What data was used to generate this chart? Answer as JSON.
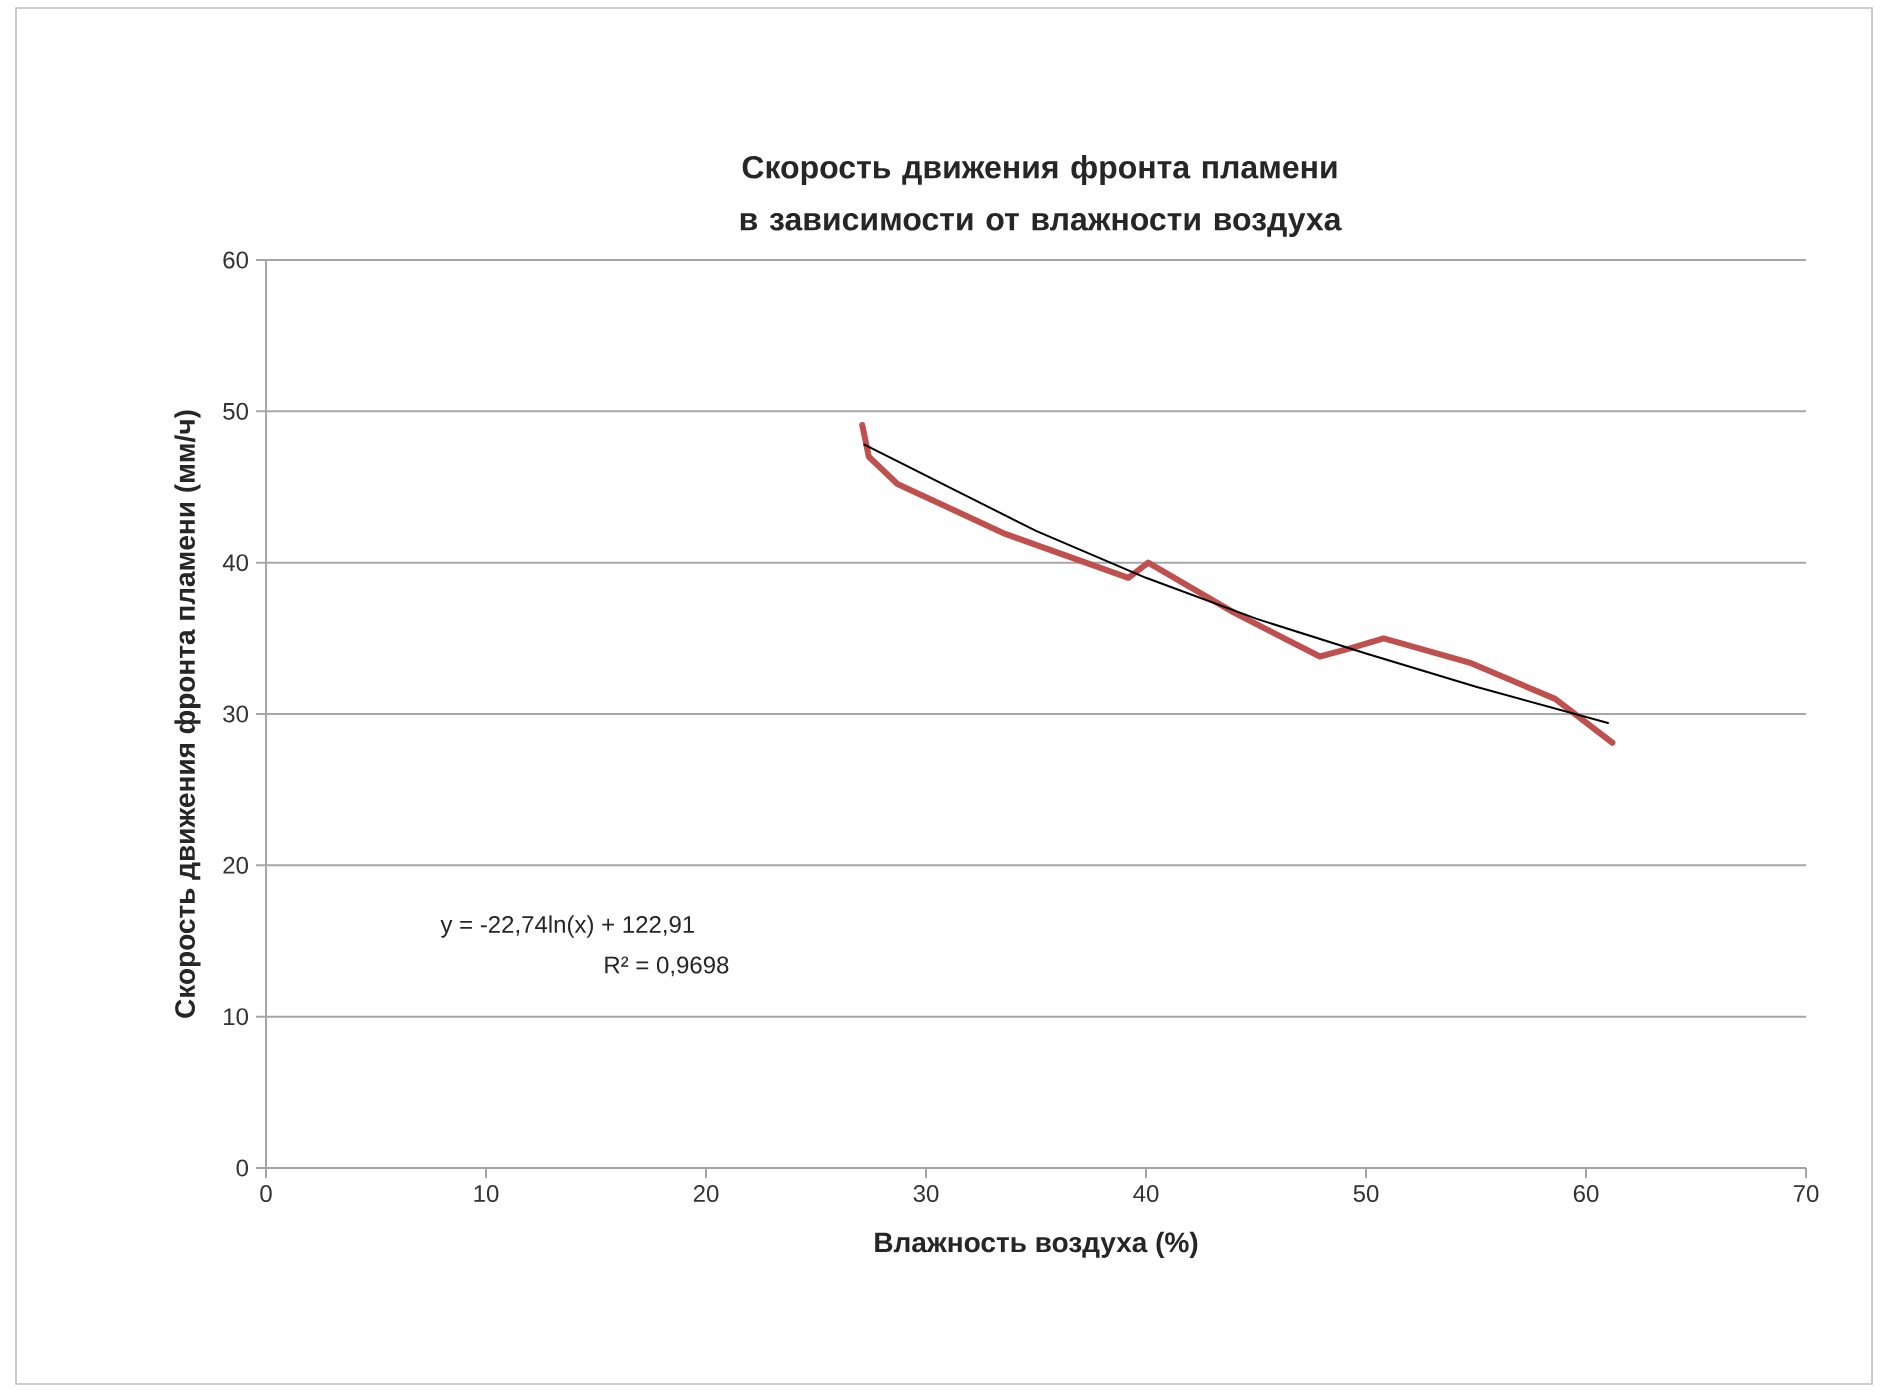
{
  "chart_data": {
    "type": "line",
    "title": "Скорость движения фронта пламени в зависимости от влажности воздуха",
    "xlabel": "Влажность воздуха (%)",
    "ylabel": "Скорость движения фронта пламени (мм/ч)",
    "xlim": [
      0,
      70
    ],
    "ylim": [
      0,
      60
    ],
    "xticks": [
      0,
      10,
      20,
      30,
      40,
      50,
      60,
      70
    ],
    "yticks": [
      0,
      10,
      20,
      30,
      40,
      50,
      60
    ],
    "grid": "y",
    "series": [
      {
        "color": "#c0504d",
        "x": [
          27.1,
          27.4,
          28.7,
          33.6,
          39.2,
          40.1,
          44.0,
          47.9,
          49.2,
          50.8,
          54.7,
          58.6,
          61.2
        ],
        "values": [
          49.1,
          47.0,
          45.2,
          41.9,
          39.0,
          40.0,
          36.7,
          33.8,
          34.3,
          35.0,
          33.4,
          31.0,
          28.1
        ]
      },
      {
        "color": "#000000",
        "x": [
          27.2,
          35,
          40,
          45,
          50,
          55,
          61
        ],
        "values": [
          47.8,
          42.1,
          39.0,
          36.3,
          34.0,
          31.8,
          29.4
        ]
      }
    ],
    "annotations": [
      "y = -22,74ln(x) + 122,91",
      "R² = 0,9698"
    ]
  }
}
